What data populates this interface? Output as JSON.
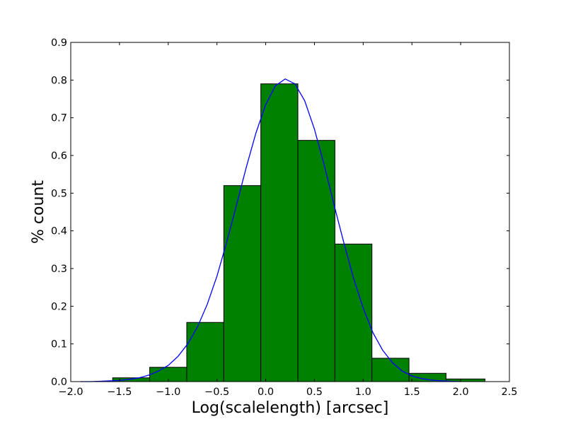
{
  "chart_data": {
    "type": "bar",
    "title": "",
    "xlabel": "Log(scalelength) [arcsec]",
    "ylabel": "% count",
    "xlim": [
      -2.0,
      2.5
    ],
    "ylim": [
      0.0,
      0.9
    ],
    "x_ticks": [
      -2.0,
      -1.5,
      -1.0,
      -0.5,
      0.0,
      0.5,
      1.0,
      1.5,
      2.0,
      2.5
    ],
    "x_tick_labels": [
      "−2.0",
      "−1.5",
      "−1.0",
      "−0.5",
      "0.0",
      "0.5",
      "1.0",
      "1.5",
      "2.0",
      "2.5"
    ],
    "y_ticks": [
      0.0,
      0.1,
      0.2,
      0.3,
      0.4,
      0.5,
      0.6,
      0.7,
      0.8,
      0.9
    ],
    "y_tick_labels": [
      "0.0",
      "0.1",
      "0.2",
      "0.3",
      "0.4",
      "0.5",
      "0.6",
      "0.7",
      "0.8",
      "0.9"
    ],
    "grid": false,
    "legend": "none",
    "histogram": {
      "bin_edges": [
        -1.57,
        -1.19,
        -0.81,
        -0.43,
        -0.05,
        0.33,
        0.71,
        1.09,
        1.47,
        1.85,
        2.25
      ],
      "values": [
        0.01,
        0.038,
        0.157,
        0.52,
        0.79,
        0.64,
        0.365,
        0.062,
        0.022,
        0.007
      ],
      "fill_color": "#008000",
      "edge_color": "#000000"
    },
    "fit_curve": {
      "type": "gaussian",
      "x": [
        -1.9,
        -1.8,
        -1.7,
        -1.6,
        -1.5,
        -1.4,
        -1.3,
        -1.2,
        -1.1,
        -1.0,
        -0.9,
        -0.8,
        -0.7,
        -0.6,
        -0.5,
        -0.4,
        -0.3,
        -0.2,
        -0.1,
        0.0,
        0.1,
        0.2,
        0.3,
        0.4,
        0.5,
        0.6,
        0.7,
        0.8,
        0.9,
        1.0,
        1.1,
        1.2,
        1.3,
        1.4,
        1.5,
        1.6,
        1.7,
        1.8,
        1.9,
        2.0
      ],
      "y": [
        0.0,
        0.0,
        0.001,
        0.002,
        0.003,
        0.006,
        0.01,
        0.017,
        0.028,
        0.043,
        0.067,
        0.1,
        0.145,
        0.205,
        0.28,
        0.37,
        0.468,
        0.568,
        0.66,
        0.735,
        0.785,
        0.803,
        0.79,
        0.745,
        0.67,
        0.575,
        0.47,
        0.37,
        0.275,
        0.195,
        0.13,
        0.083,
        0.05,
        0.028,
        0.015,
        0.008,
        0.004,
        0.002,
        0.001,
        0.0
      ],
      "color": "#0000ff"
    }
  }
}
